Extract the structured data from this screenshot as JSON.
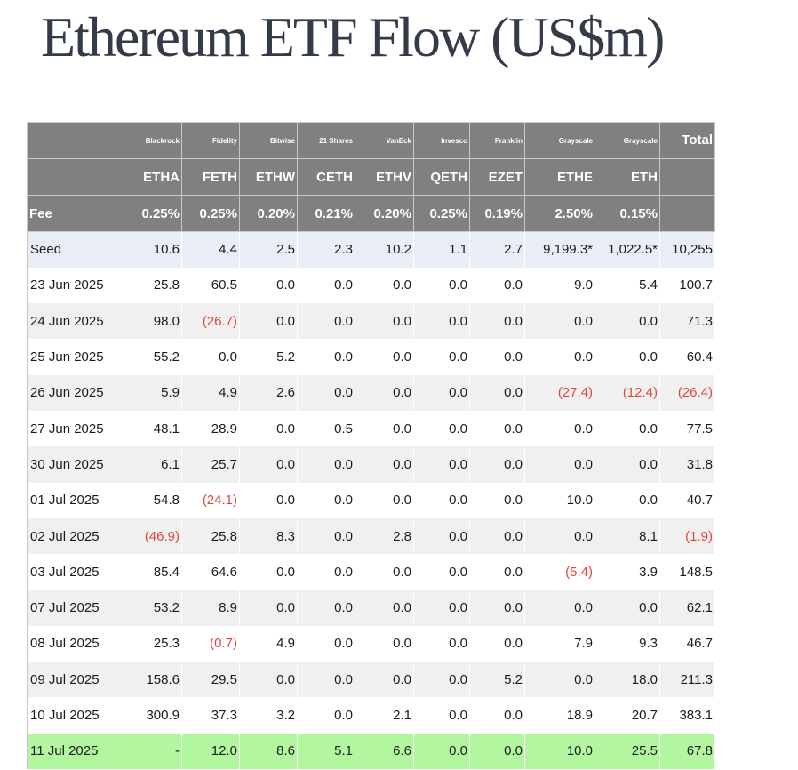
{
  "title": "Ethereum ETF Flow (US$m)",
  "table": {
    "issuers": [
      "",
      "Blackrock",
      "Fidelity",
      "Bitwise",
      "21 Shares",
      "VanEck",
      "Invesco",
      "Franklin",
      "Grayscale",
      "Grayscale",
      "Total"
    ],
    "tickers": [
      "",
      "ETHA",
      "FETH",
      "ETHW",
      "CETH",
      "ETHV",
      "QETH",
      "EZET",
      "ETHE",
      "ETH",
      ""
    ],
    "fees": [
      "Fee",
      "0.25%",
      "0.25%",
      "0.20%",
      "0.21%",
      "0.20%",
      "0.25%",
      "0.19%",
      "2.50%",
      "0.15%",
      ""
    ],
    "rows": [
      [
        "Seed",
        "10.6",
        "4.4",
        "2.5",
        "2.3",
        "10.2",
        "1.1",
        "2.7",
        "9,199.3*",
        "1,022.5*",
        "10,255"
      ],
      [
        "23 Jun 2025",
        "25.8",
        "60.5",
        "0.0",
        "0.0",
        "0.0",
        "0.0",
        "0.0",
        "9.0",
        "5.4",
        "100.7"
      ],
      [
        "24 Jun 2025",
        "98.0",
        "(26.7)",
        "0.0",
        "0.0",
        "0.0",
        "0.0",
        "0.0",
        "0.0",
        "0.0",
        "71.3"
      ],
      [
        "25 Jun 2025",
        "55.2",
        "0.0",
        "5.2",
        "0.0",
        "0.0",
        "0.0",
        "0.0",
        "0.0",
        "0.0",
        "60.4"
      ],
      [
        "26 Jun 2025",
        "5.9",
        "4.9",
        "2.6",
        "0.0",
        "0.0",
        "0.0",
        "0.0",
        "(27.4)",
        "(12.4)",
        "(26.4)"
      ],
      [
        "27 Jun 2025",
        "48.1",
        "28.9",
        "0.0",
        "0.5",
        "0.0",
        "0.0",
        "0.0",
        "0.0",
        "0.0",
        "77.5"
      ],
      [
        "30 Jun 2025",
        "6.1",
        "25.7",
        "0.0",
        "0.0",
        "0.0",
        "0.0",
        "0.0",
        "0.0",
        "0.0",
        "31.8"
      ],
      [
        "01 Jul 2025",
        "54.8",
        "(24.1)",
        "0.0",
        "0.0",
        "0.0",
        "0.0",
        "0.0",
        "10.0",
        "0.0",
        "40.7"
      ],
      [
        "02 Jul 2025",
        "(46.9)",
        "25.8",
        "8.3",
        "0.0",
        "2.8",
        "0.0",
        "0.0",
        "0.0",
        "8.1",
        "(1.9)"
      ],
      [
        "03 Jul 2025",
        "85.4",
        "64.6",
        "0.0",
        "0.0",
        "0.0",
        "0.0",
        "0.0",
        "(5.4)",
        "3.9",
        "148.5"
      ],
      [
        "07 Jul 2025",
        "53.2",
        "8.9",
        "0.0",
        "0.0",
        "0.0",
        "0.0",
        "0.0",
        "0.0",
        "0.0",
        "62.1"
      ],
      [
        "08 Jul 2025",
        "25.3",
        "(0.7)",
        "4.9",
        "0.0",
        "0.0",
        "0.0",
        "0.0",
        "7.9",
        "9.3",
        "46.7"
      ],
      [
        "09 Jul 2025",
        "158.6",
        "29.5",
        "0.0",
        "0.0",
        "0.0",
        "0.0",
        "5.2",
        "0.0",
        "18.0",
        "211.3"
      ],
      [
        "10 Jul 2025",
        "300.9",
        "37.3",
        "3.2",
        "0.0",
        "2.1",
        "0.0",
        "0.0",
        "18.9",
        "20.7",
        "383.1"
      ],
      [
        "11 Jul 2025",
        "-",
        "12.0",
        "8.6",
        "5.1",
        "6.6",
        "0.0",
        "0.0",
        "10.0",
        "25.5",
        "67.8"
      ]
    ]
  },
  "colors": {
    "title": "#333a48",
    "header_bg": "#808080",
    "seed_row_bg": "#e8edf6",
    "striped_row_bg": "#f0f0f0",
    "latest_row_bg": "#b2f7a0",
    "negative_text": "#e0483c"
  }
}
